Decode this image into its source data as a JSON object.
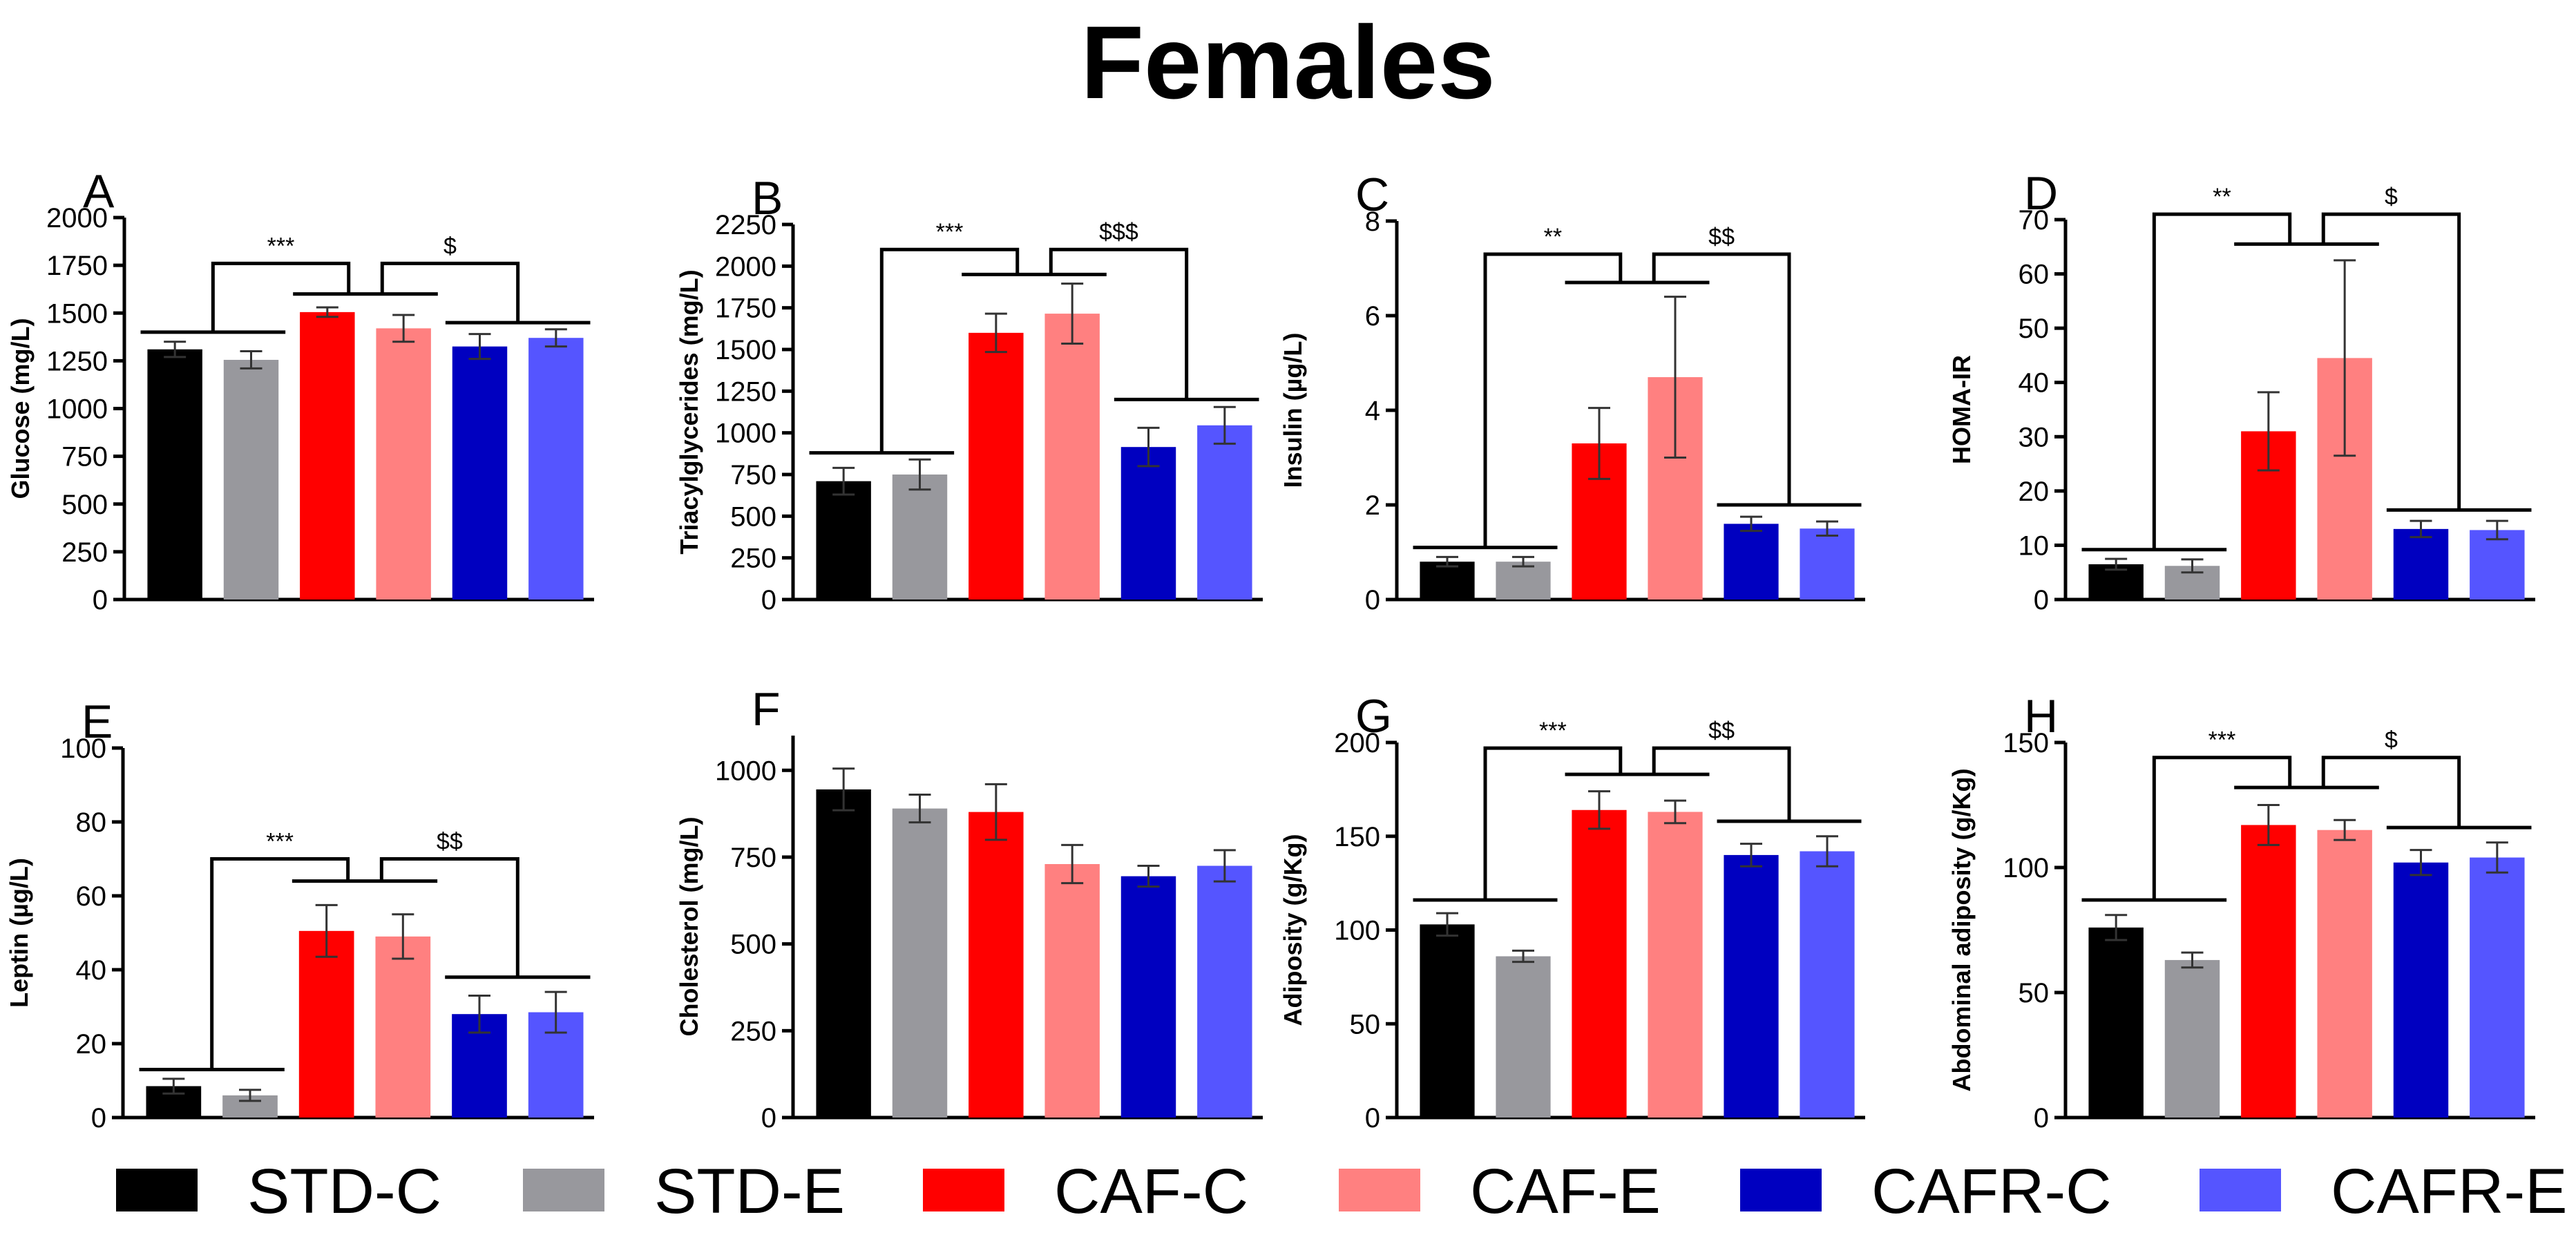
{
  "title": "Females",
  "groups": [
    "STD-C",
    "STD-E",
    "CAF-C",
    "CAF-E",
    "CAFR-C",
    "CAFR-E"
  ],
  "colors": [
    "#000000",
    "#98989d",
    "#ff0000",
    "#ff8080",
    "#0000c0",
    "#5555ff"
  ],
  "chart_data": [
    {
      "type": "bar",
      "letter": "A",
      "ylabel": "Glucose (mg/L)",
      "ylim": [
        0,
        2000
      ],
      "ticks": [
        0,
        250,
        500,
        750,
        1000,
        1250,
        1500,
        1750,
        2000
      ],
      "categories": [
        "STD-C",
        "STD-E",
        "CAF-C",
        "CAF-E",
        "CAFR-C",
        "CAFR-E"
      ],
      "values": [
        1310,
        1255,
        1505,
        1420,
        1325,
        1370
      ],
      "errors": [
        40,
        45,
        25,
        70,
        65,
        45
      ],
      "brackets": {
        "pairs": [
          1400,
          1600,
          1450
        ],
        "top": 1760,
        "left_sym": "***",
        "right_sym": "$"
      }
    },
    {
      "type": "bar",
      "letter": "B",
      "ylabel": "Triacylglycerides (mg/L)",
      "ylim": [
        0,
        2250
      ],
      "ticks": [
        0,
        250,
        500,
        750,
        1000,
        1250,
        1500,
        1750,
        2000,
        2250
      ],
      "categories": [
        "STD-C",
        "STD-E",
        "CAF-C",
        "CAF-E",
        "CAFR-C",
        "CAFR-E"
      ],
      "values": [
        710,
        750,
        1600,
        1715,
        915,
        1045
      ],
      "errors": [
        80,
        90,
        115,
        180,
        115,
        110
      ],
      "brackets": {
        "pairs": [
          880,
          1950,
          1200
        ],
        "top": 2100,
        "left_sym": "***",
        "right_sym": "$$$"
      }
    },
    {
      "type": "bar",
      "letter": "C",
      "ylabel": "Insulin (µg/L)",
      "ylim": [
        0,
        8
      ],
      "ticks": [
        0,
        2,
        4,
        6,
        8
      ],
      "categories": [
        "STD-C",
        "STD-E",
        "CAF-C",
        "CAF-E",
        "CAFR-C",
        "CAFR-E"
      ],
      "values": [
        0.8,
        0.8,
        3.3,
        4.7,
        1.6,
        1.5
      ],
      "errors": [
        0.1,
        0.1,
        0.75,
        1.7,
        0.15,
        0.15
      ],
      "brackets": {
        "pairs": [
          1.1,
          6.7,
          2.0
        ],
        "top": 7.3,
        "left_sym": "**",
        "right_sym": "$$"
      }
    },
    {
      "type": "bar",
      "letter": "D",
      "ylabel": "HOMA-IR",
      "ylim": [
        0,
        70
      ],
      "ticks": [
        0,
        10,
        20,
        30,
        40,
        50,
        60,
        70
      ],
      "categories": [
        "STD-C",
        "STD-E",
        "CAF-C",
        "CAF-E",
        "CAFR-C",
        "CAFR-E"
      ],
      "values": [
        6.5,
        6.2,
        31,
        44.5,
        13,
        12.8
      ],
      "errors": [
        1.0,
        1.2,
        7.2,
        18,
        1.5,
        1.7
      ],
      "brackets": {
        "pairs": [
          9.2,
          65.5,
          16.5
        ],
        "top": 71,
        "left_sym": "**",
        "right_sym": "$"
      }
    },
    {
      "type": "bar",
      "letter": "E",
      "ylabel": "Leptin (µg/L)",
      "ylim": [
        0,
        100
      ],
      "ticks": [
        0,
        20,
        40,
        60,
        80,
        100
      ],
      "categories": [
        "STD-C",
        "STD-E",
        "CAF-C",
        "CAF-E",
        "CAFR-C",
        "CAFR-E"
      ],
      "values": [
        8.5,
        6,
        50.5,
        49,
        28,
        28.5
      ],
      "errors": [
        2,
        1.5,
        7,
        6,
        5,
        5.5
      ],
      "brackets": {
        "pairs": [
          13,
          64,
          38
        ],
        "top": 70,
        "left_sym": "***",
        "right_sym": "$$"
      }
    },
    {
      "type": "bar",
      "letter": "F",
      "ylabel": "Cholesterol (mg/L)",
      "ylim": [
        0,
        1100
      ],
      "ticks": [
        0,
        250,
        500,
        750,
        1000
      ],
      "categories": [
        "STD-C",
        "STD-E",
        "CAF-C",
        "CAF-E",
        "CAFR-C",
        "CAFR-E"
      ],
      "values": [
        945,
        890,
        880,
        730,
        695,
        725
      ],
      "errors": [
        60,
        40,
        80,
        55,
        30,
        45
      ],
      "brackets": null
    },
    {
      "type": "bar",
      "letter": "G",
      "ylabel": "Adiposity (g/Kg)",
      "ylim": [
        0,
        200
      ],
      "ticks": [
        0,
        50,
        100,
        150,
        200
      ],
      "categories": [
        "STD-C",
        "STD-E",
        "CAF-C",
        "CAF-E",
        "CAFR-C",
        "CAFR-E"
      ],
      "values": [
        103,
        86,
        164,
        163,
        140,
        142
      ],
      "errors": [
        6,
        3,
        10,
        6,
        6,
        8
      ],
      "brackets": {
        "pairs": [
          116,
          183,
          158
        ],
        "top": 197,
        "left_sym": "***",
        "right_sym": "$$"
      }
    },
    {
      "type": "bar",
      "letter": "H",
      "ylabel": "Abdominal adiposity (g/Kg)",
      "ylim": [
        0,
        150
      ],
      "ticks": [
        0,
        50,
        100,
        150
      ],
      "categories": [
        "STD-C",
        "STD-E",
        "CAF-C",
        "CAF-E",
        "CAFR-C",
        "CAFR-E"
      ],
      "values": [
        76,
        63,
        117,
        115,
        102,
        104
      ],
      "errors": [
        5,
        3,
        8,
        4,
        5,
        6
      ],
      "brackets": {
        "pairs": [
          87,
          132,
          116
        ],
        "top": 144,
        "left_sym": "***",
        "right_sym": "$"
      }
    }
  ]
}
